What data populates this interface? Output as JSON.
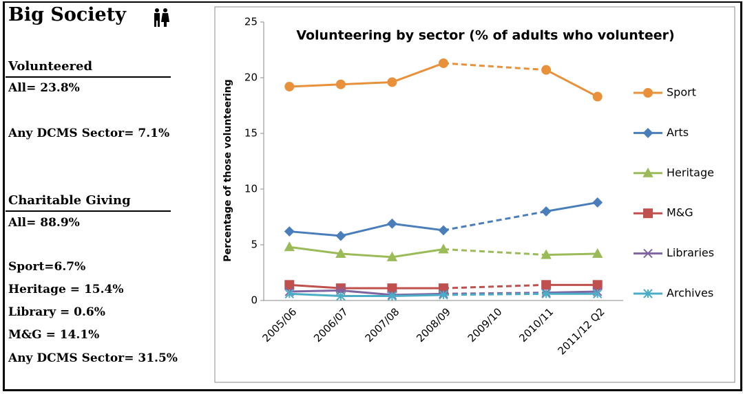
{
  "sidebar": {
    "title": "Big Society",
    "sections": [
      {
        "heading": "Volunteered",
        "items": [
          "All= 23.8%",
          "Any DCMS Sector= 7.1%"
        ]
      },
      {
        "heading": "Charitable Giving",
        "items": [
          "All= 88.9%",
          "Sport=6.7%",
          "Heritage = 15.4%",
          "Library = 0.6%",
          "M&G = 14.1%",
          "Any DCMS Sector= 31.5%"
        ]
      }
    ]
  },
  "chart_data": {
    "type": "line",
    "title": "Volunteering by sector (% of adults who volunteer)",
    "ylabel": "Percentage of those volunteering",
    "categories": [
      "2005/06",
      "2006/07",
      "2007/08",
      "2008/09",
      "2009/10",
      "2010/11",
      "2011/12 Q2"
    ],
    "ylim": [
      0,
      25
    ],
    "yticks": [
      0,
      5,
      10,
      15,
      20,
      25
    ],
    "legend": "right",
    "gap_style": "dashed",
    "series": [
      {
        "name": "Sport",
        "color": "#e8913a",
        "marker": "circle",
        "values": [
          19.2,
          19.4,
          19.6,
          21.3,
          null,
          20.7,
          18.3
        ]
      },
      {
        "name": "Arts",
        "color": "#4a7ebb",
        "marker": "diamond",
        "values": [
          6.2,
          5.8,
          6.9,
          6.3,
          null,
          8.0,
          8.8
        ]
      },
      {
        "name": "Heritage",
        "color": "#9bbb59",
        "marker": "triangle",
        "values": [
          4.8,
          4.2,
          3.9,
          4.6,
          null,
          4.1,
          4.2
        ]
      },
      {
        "name": "M&G",
        "color": "#c0504d",
        "marker": "square",
        "values": [
          1.4,
          1.1,
          1.1,
          1.1,
          null,
          1.4,
          1.4
        ]
      },
      {
        "name": "Libraries",
        "color": "#8064a2",
        "marker": "x",
        "values": [
          0.8,
          0.9,
          0.5,
          0.6,
          null,
          0.7,
          0.8
        ]
      },
      {
        "name": "Archives",
        "color": "#4bacc6",
        "marker": "star",
        "values": [
          0.6,
          0.4,
          0.4,
          0.5,
          null,
          0.6,
          0.6
        ]
      }
    ]
  }
}
